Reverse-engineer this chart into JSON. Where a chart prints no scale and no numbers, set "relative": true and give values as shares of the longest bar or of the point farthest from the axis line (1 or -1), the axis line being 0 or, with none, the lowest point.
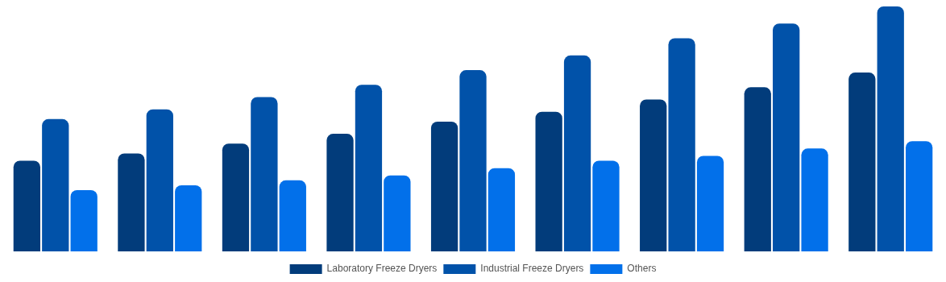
{
  "chart_data": {
    "type": "bar",
    "relative": true,
    "categories": [
      null,
      null,
      null,
      null,
      null,
      null,
      null,
      null,
      null
    ],
    "series": [
      {
        "name": "Laboratory Freeze Dryers",
        "color": "#023c7b",
        "values": [
          0.37,
          0.4,
          0.44,
          0.48,
          0.53,
          0.57,
          0.62,
          0.67,
          0.73
        ]
      },
      {
        "name": "Industrial Freeze Dryers",
        "color": "#0152a9",
        "values": [
          0.54,
          0.58,
          0.63,
          0.68,
          0.74,
          0.8,
          0.87,
          0.93,
          1
        ]
      },
      {
        "name": "Others",
        "color": "#0270ea",
        "values": [
          0.25,
          0.27,
          0.29,
          0.31,
          0.34,
          0.37,
          0.39,
          0.42,
          0.45
        ]
      }
    ],
    "legend": "bottom"
  }
}
